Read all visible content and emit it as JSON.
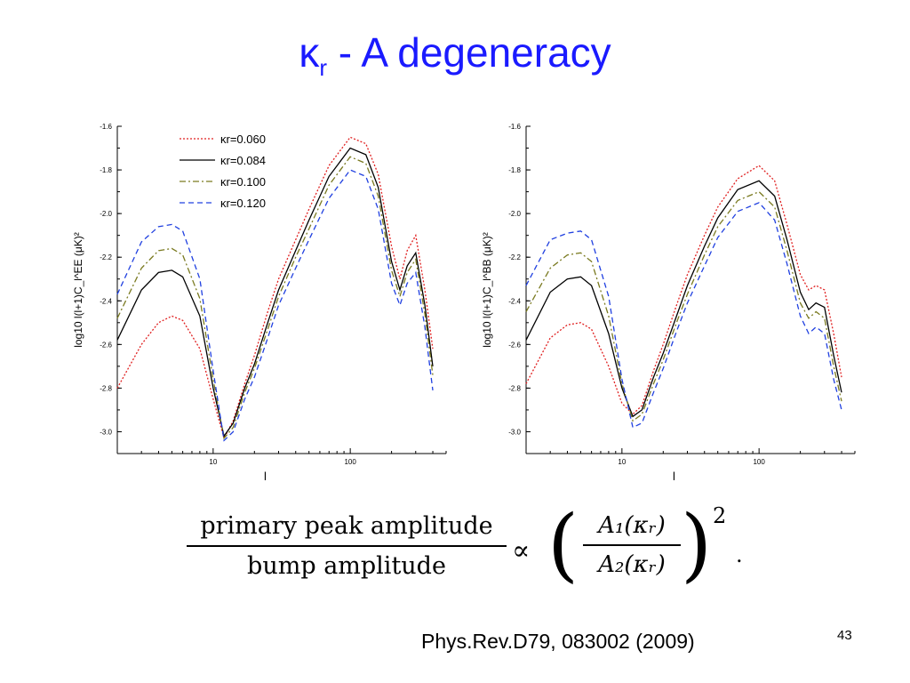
{
  "slide": {
    "title_kappa": "κ",
    "title_sub": "r",
    "title_rest": " - A  degeneracy",
    "citation": "Phys.Rev.D79,   083002   (2009)",
    "page_number": "43"
  },
  "formula": {
    "numerator": "primary peak amplitude",
    "denominator": "bump amplitude",
    "proportional": "∝",
    "rhs_numerator": "A₁(κᵣ)",
    "rhs_denominator": "A₂(κᵣ)",
    "exponent": "2",
    "trailing": "."
  },
  "chart_data": [
    {
      "type": "line",
      "xscale": "log",
      "xlim": [
        2,
        500
      ],
      "ylim": [
        -3.1,
        -1.6
      ],
      "yticks": [
        -1.6,
        -1.8,
        -2.0,
        -2.2,
        -2.4,
        -2.6,
        -2.8,
        -3.0
      ],
      "ytick_labels": [
        "-1.6",
        "-1.8",
        "-2.0",
        "-2.2",
        "-2.4",
        "-2.6",
        "-2.8",
        "-3.0"
      ],
      "xticks": [
        10,
        100
      ],
      "xtick_labels": [
        "10",
        "100"
      ],
      "xlabel": "l",
      "ylabel": "log10  l(l+1)C_l^EE  (μK)²",
      "legend_position": "top-left",
      "series": [
        {
          "name": "κr=0.060",
          "color": "#e02020",
          "dash": "dotted",
          "x": [
            2,
            3,
            4,
            5,
            6,
            8,
            10,
            12,
            14,
            17,
            20,
            25,
            30,
            40,
            50,
            70,
            100,
            130,
            160,
            200,
            230,
            260,
            300,
            350,
            400
          ],
          "y": [
            -2.8,
            -2.6,
            -2.5,
            -2.47,
            -2.49,
            -2.62,
            -2.85,
            -3.03,
            -2.95,
            -2.78,
            -2.65,
            -2.45,
            -2.3,
            -2.12,
            -1.98,
            -1.78,
            -1.65,
            -1.68,
            -1.82,
            -2.15,
            -2.3,
            -2.17,
            -2.1,
            -2.35,
            -2.62
          ]
        },
        {
          "name": "κr=0.084",
          "color": "#000000",
          "dash": "solid",
          "x": [
            2,
            3,
            4,
            5,
            6,
            8,
            10,
            12,
            14,
            17,
            20,
            25,
            30,
            40,
            50,
            70,
            100,
            130,
            160,
            200,
            230,
            260,
            300,
            350,
            400
          ],
          "y": [
            -2.58,
            -2.35,
            -2.27,
            -2.26,
            -2.29,
            -2.47,
            -2.8,
            -3.02,
            -2.96,
            -2.8,
            -2.69,
            -2.5,
            -2.35,
            -2.17,
            -2.03,
            -1.83,
            -1.7,
            -1.73,
            -1.88,
            -2.22,
            -2.35,
            -2.24,
            -2.18,
            -2.42,
            -2.7
          ]
        },
        {
          "name": "κr=0.100",
          "color": "#7a7a20",
          "dash": "dashdot",
          "x": [
            2,
            3,
            4,
            5,
            6,
            8,
            10,
            12,
            14,
            17,
            20,
            25,
            30,
            40,
            50,
            70,
            100,
            130,
            160,
            200,
            230,
            260,
            300,
            350,
            400
          ],
          "y": [
            -2.48,
            -2.25,
            -2.17,
            -2.16,
            -2.19,
            -2.39,
            -2.76,
            -3.03,
            -2.98,
            -2.82,
            -2.71,
            -2.53,
            -2.38,
            -2.2,
            -2.07,
            -1.87,
            -1.74,
            -1.77,
            -1.92,
            -2.26,
            -2.38,
            -2.27,
            -2.21,
            -2.46,
            -2.74
          ]
        },
        {
          "name": "κr=0.120",
          "color": "#2040e0",
          "dash": "dashed",
          "x": [
            2,
            3,
            4,
            5,
            6,
            8,
            10,
            12,
            14,
            17,
            20,
            25,
            30,
            40,
            50,
            70,
            100,
            130,
            160,
            200,
            230,
            260,
            300,
            350,
            400
          ],
          "y": [
            -2.37,
            -2.13,
            -2.06,
            -2.05,
            -2.08,
            -2.3,
            -2.72,
            -3.04,
            -3.0,
            -2.85,
            -2.75,
            -2.57,
            -2.42,
            -2.25,
            -2.12,
            -1.93,
            -1.8,
            -1.83,
            -1.98,
            -2.32,
            -2.42,
            -2.32,
            -2.27,
            -2.52,
            -2.81
          ]
        }
      ]
    },
    {
      "type": "line",
      "xscale": "log",
      "xlim": [
        2,
        500
      ],
      "ylim": [
        -3.1,
        -1.6
      ],
      "yticks": [
        -1.6,
        -1.8,
        -2.0,
        -2.2,
        -2.4,
        -2.6,
        -2.8,
        -3.0
      ],
      "ytick_labels": [
        "-1.6",
        "-1.8",
        "-2.0",
        "-2.2",
        "-2.4",
        "-2.6",
        "-2.8",
        "-3.0"
      ],
      "xticks": [
        10,
        100
      ],
      "xtick_labels": [
        "10",
        "100"
      ],
      "xlabel": "l",
      "ylabel": "log10  l(l+1)C_l^BB  (μK)²",
      "series": [
        {
          "color": "#e02020",
          "dash": "dotted",
          "x": [
            2,
            3,
            4,
            5,
            6,
            8,
            10,
            12,
            14,
            17,
            20,
            25,
            30,
            40,
            50,
            70,
            100,
            130,
            160,
            200,
            230,
            260,
            300,
            350,
            400
          ],
          "y": [
            -2.78,
            -2.57,
            -2.51,
            -2.5,
            -2.53,
            -2.7,
            -2.87,
            -2.92,
            -2.88,
            -2.72,
            -2.6,
            -2.42,
            -2.28,
            -2.1,
            -1.97,
            -1.84,
            -1.78,
            -1.85,
            -2.05,
            -2.28,
            -2.35,
            -2.33,
            -2.35,
            -2.55,
            -2.75
          ]
        },
        {
          "color": "#000000",
          "dash": "solid",
          "x": [
            2,
            3,
            4,
            5,
            6,
            8,
            10,
            12,
            14,
            17,
            20,
            25,
            30,
            40,
            50,
            70,
            100,
            130,
            160,
            200,
            230,
            260,
            300,
            350,
            400
          ],
          "y": [
            -2.58,
            -2.36,
            -2.3,
            -2.29,
            -2.33,
            -2.55,
            -2.8,
            -2.93,
            -2.9,
            -2.75,
            -2.64,
            -2.47,
            -2.33,
            -2.15,
            -2.02,
            -1.89,
            -1.85,
            -1.92,
            -2.12,
            -2.36,
            -2.44,
            -2.41,
            -2.43,
            -2.65,
            -2.82
          ]
        },
        {
          "color": "#7a7a20",
          "dash": "dashdot",
          "x": [
            2,
            3,
            4,
            5,
            6,
            8,
            10,
            12,
            14,
            17,
            20,
            25,
            30,
            40,
            50,
            70,
            100,
            130,
            160,
            200,
            230,
            260,
            300,
            350,
            400
          ],
          "y": [
            -2.45,
            -2.25,
            -2.19,
            -2.18,
            -2.22,
            -2.47,
            -2.78,
            -2.95,
            -2.92,
            -2.78,
            -2.67,
            -2.5,
            -2.37,
            -2.19,
            -2.06,
            -1.94,
            -1.9,
            -1.97,
            -2.17,
            -2.41,
            -2.48,
            -2.45,
            -2.48,
            -2.7,
            -2.86
          ]
        },
        {
          "color": "#2040e0",
          "dash": "dashed",
          "x": [
            2,
            3,
            4,
            5,
            6,
            8,
            10,
            12,
            14,
            17,
            20,
            25,
            30,
            40,
            50,
            70,
            100,
            130,
            160,
            200,
            230,
            260,
            300,
            350,
            400
          ],
          "y": [
            -2.33,
            -2.12,
            -2.09,
            -2.08,
            -2.12,
            -2.38,
            -2.76,
            -2.98,
            -2.96,
            -2.82,
            -2.71,
            -2.54,
            -2.41,
            -2.24,
            -2.11,
            -1.99,
            -1.95,
            -2.03,
            -2.23,
            -2.47,
            -2.55,
            -2.52,
            -2.55,
            -2.76,
            -2.9
          ]
        }
      ]
    }
  ]
}
